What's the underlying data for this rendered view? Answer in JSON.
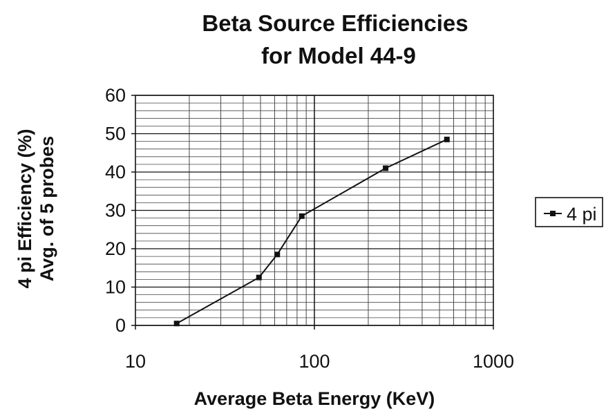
{
  "chart_data": {
    "type": "line",
    "title": [
      "Beta Source Efficiencies",
      "for Model 44-9"
    ],
    "xlabel": "Average Beta Energy (KeV)",
    "ylabel": [
      "4 pi Efficiency (%)",
      "Avg. of 5 probes"
    ],
    "x_scale": "log",
    "xlim": [
      10,
      1000
    ],
    "ylim": [
      0,
      60
    ],
    "x_ticks": [
      "10",
      "100",
      "1000"
    ],
    "y_ticks": [
      "0",
      "10",
      "20",
      "30",
      "40",
      "50",
      "60"
    ],
    "grid": true,
    "legend_position": "right",
    "series": [
      {
        "name": "4 pi",
        "color": "#111111",
        "marker": "square",
        "points": [
          {
            "x": 17,
            "y": 0.5
          },
          {
            "x": 49,
            "y": 12.5
          },
          {
            "x": 62,
            "y": 18.5
          },
          {
            "x": 85,
            "y": 28.5
          },
          {
            "x": 250,
            "y": 41
          },
          {
            "x": 550,
            "y": 48.5
          }
        ]
      }
    ]
  }
}
